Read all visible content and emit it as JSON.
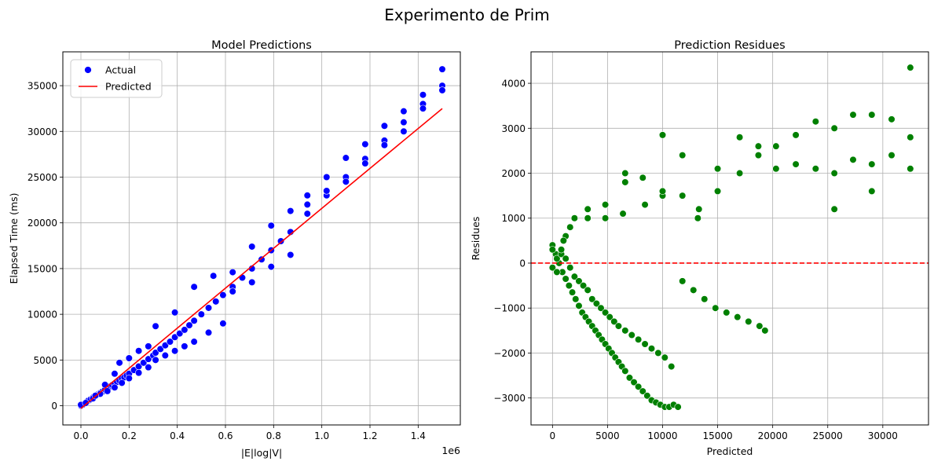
{
  "figure": {
    "suptitle": "Experimento de Prim"
  },
  "chart_data": [
    {
      "type": "scatter",
      "title": "Model Predictions",
      "xlabel": "|E|log|V|",
      "ylabel": "Elapsed Time (ms)",
      "x_offset_text": "1e6",
      "xlim": [
        -0.075,
        1.575
      ],
      "ylim": [
        -2100,
        38700
      ],
      "xticks": [
        0.0,
        0.2,
        0.4,
        0.6,
        0.8,
        1.0,
        1.2,
        1.4
      ],
      "xtick_labels": [
        "0.0",
        "0.2",
        "0.4",
        "0.6",
        "0.8",
        "1.0",
        "1.2",
        "1.4"
      ],
      "yticks": [
        0,
        5000,
        10000,
        15000,
        20000,
        25000,
        30000,
        35000
      ],
      "ytick_labels": [
        "0",
        "5000",
        "10000",
        "15000",
        "20000",
        "25000",
        "30000",
        "35000"
      ],
      "grid": true,
      "legend": {
        "position": "upper-left",
        "entries": [
          "Actual",
          "Predicted"
        ]
      },
      "series": [
        {
          "name": "Actual",
          "kind": "scatter",
          "color": "#0000ff",
          "x": [
            0.0,
            0.01,
            0.02,
            0.03,
            0.04,
            0.05,
            0.06,
            0.07,
            0.08,
            0.09,
            0.1,
            0.11,
            0.12,
            0.13,
            0.14,
            0.15,
            0.16,
            0.17,
            0.18,
            0.19,
            0.2,
            0.22,
            0.24,
            0.26,
            0.28,
            0.3,
            0.31,
            0.33,
            0.35,
            0.37,
            0.39,
            0.41,
            0.43,
            0.45,
            0.47,
            0.5,
            0.53,
            0.56,
            0.59,
            0.63,
            0.67,
            0.71,
            0.75,
            0.79,
            0.83,
            0.87,
            0.94,
            1.02,
            1.1,
            1.18,
            1.26,
            1.34,
            1.42,
            1.5,
            0.0,
            0.02,
            0.05,
            0.08,
            0.11,
            0.14,
            0.17,
            0.2,
            0.24,
            0.28,
            0.31,
            0.35,
            0.39,
            0.43,
            0.47,
            0.53,
            0.59,
            0.63,
            0.71,
            0.79,
            0.87,
            0.94,
            1.02,
            1.1,
            1.18,
            1.26,
            1.34,
            1.42,
            1.5,
            0.06,
            0.1,
            0.14,
            0.16,
            0.2,
            0.24,
            0.28,
            0.31,
            0.39,
            0.47,
            0.55,
            0.63,
            0.71,
            0.79,
            0.87,
            0.94,
            1.02,
            1.1,
            1.18,
            1.26,
            1.34,
            1.42,
            1.5
          ],
          "y": [
            0,
            150,
            350,
            550,
            700,
            900,
            1050,
            1250,
            1400,
            1550,
            1750,
            1900,
            2100,
            2250,
            2400,
            2600,
            2750,
            2950,
            3100,
            3300,
            3500,
            3900,
            4300,
            4700,
            5100,
            5500,
            5800,
            6200,
            6600,
            7000,
            7500,
            7900,
            8300,
            8800,
            9300,
            10000,
            10700,
            11400,
            12100,
            13000,
            14000,
            15000,
            16000,
            17000,
            18000,
            19000,
            21000,
            23000,
            25000,
            27000,
            29000,
            31000,
            33000,
            35000,
            100,
            300,
            800,
            1300,
            1600,
            2000,
            2500,
            3000,
            3600,
            4200,
            5000,
            5500,
            6000,
            6500,
            7000,
            8000,
            9000,
            12500,
            13500,
            15200,
            16500,
            22000,
            23500,
            24500,
            26500,
            28500,
            30000,
            32500,
            34500,
            1100,
            2300,
            3500,
            4700,
            5200,
            6000,
            6500,
            8700,
            10200,
            13000,
            14200,
            14600,
            17400,
            19700,
            21300,
            23000,
            25000,
            27100,
            28600,
            30600,
            32200,
            34000,
            36800
          ]
        },
        {
          "name": "Predicted",
          "kind": "line",
          "color": "#ff0000",
          "x": [
            0.0,
            0.3,
            0.6,
            0.9,
            1.2,
            1.5
          ],
          "y": [
            -300,
            6300,
            12850,
            19400,
            25950,
            32500
          ]
        }
      ]
    },
    {
      "type": "scatter",
      "title": "Prediction Residues",
      "xlabel": "Predicted",
      "ylabel": "Residues",
      "xlim": [
        -1950,
        34150
      ],
      "ylim": [
        -3600,
        4700
      ],
      "xticks": [
        0,
        5000,
        10000,
        15000,
        20000,
        25000,
        30000
      ],
      "xtick_labels": [
        "0",
        "5000",
        "10000",
        "15000",
        "20000",
        "25000",
        "30000"
      ],
      "yticks": [
        -3000,
        -2000,
        -1000,
        0,
        1000,
        2000,
        3000,
        4000
      ],
      "ytick_labels": [
        "−3000",
        "−2000",
        "−1000",
        "0",
        "1000",
        "2000",
        "3000",
        "4000"
      ],
      "grid": true,
      "reference_line": {
        "y": 0,
        "color": "#ff0000",
        "style": "dashed"
      },
      "series": [
        {
          "name": "",
          "kind": "scatter",
          "color": "#008000",
          "x": [
            0,
            300,
            600,
            900,
            1200,
            1500,
            1800,
            2100,
            2400,
            2700,
            3000,
            3300,
            3600,
            3900,
            4200,
            4500,
            4800,
            5100,
            5400,
            5700,
            6000,
            6300,
            6600,
            7000,
            7400,
            7800,
            8200,
            8600,
            9000,
            9400,
            9800,
            10200,
            10600,
            11000,
            11400,
            0,
            400,
            800,
            1200,
            1600,
            2000,
            2400,
            2800,
            3200,
            3600,
            4000,
            4400,
            4800,
            5200,
            5600,
            6000,
            6600,
            7200,
            7800,
            8400,
            9000,
            9600,
            10200,
            10800,
            11800,
            12800,
            13800,
            14800,
            15800,
            16800,
            17800,
            18800,
            19300,
            0,
            400,
            800,
            1200,
            1600,
            2000,
            3200,
            4800,
            6400,
            8400,
            10000,
            11800,
            13200,
            15000,
            17000,
            18700,
            20300,
            22100,
            23900,
            25600,
            27300,
            29000,
            30800,
            32500,
            1000,
            3200,
            4800,
            6600,
            8200,
            10000,
            11800,
            13300,
            15000,
            17000,
            18700,
            20300,
            22100,
            23900,
            25600,
            27300,
            29000,
            30800,
            32500,
            10000,
            6600,
            32500,
            25600,
            29000
          ],
          "y": [
            400,
            200,
            0,
            -200,
            -350,
            -500,
            -650,
            -800,
            -950,
            -1100,
            -1200,
            -1300,
            -1400,
            -1500,
            -1600,
            -1700,
            -1800,
            -1900,
            -2000,
            -2100,
            -2200,
            -2300,
            -2400,
            -2550,
            -2650,
            -2750,
            -2850,
            -2950,
            -3050,
            -3100,
            -3150,
            -3200,
            -3200,
            -3150,
            -3200,
            300,
            100,
            200,
            100,
            -100,
            -300,
            -400,
            -500,
            -600,
            -800,
            -900,
            -1000,
            -1100,
            -1200,
            -1300,
            -1400,
            -1500,
            -1600,
            -1700,
            -1800,
            -1900,
            -2000,
            -2100,
            -2300,
            -400,
            -600,
            -800,
            -1000,
            -1100,
            -1200,
            -1300,
            -1400,
            -1500,
            -100,
            -200,
            300,
            600,
            800,
            1000,
            1200,
            1300,
            1100,
            1300,
            1500,
            1500,
            1000,
            1600,
            2000,
            2400,
            2100,
            2200,
            2100,
            2000,
            2300,
            2200,
            2400,
            2100,
            500,
            1000,
            1000,
            2000,
            1900,
            2850,
            2400,
            1200,
            2100,
            2800,
            2600,
            2600,
            2850,
            3150,
            3000,
            3300,
            3300,
            3200,
            4350,
            1600,
            1800,
            2800,
            1200,
            1600
          ]
        }
      ]
    }
  ]
}
